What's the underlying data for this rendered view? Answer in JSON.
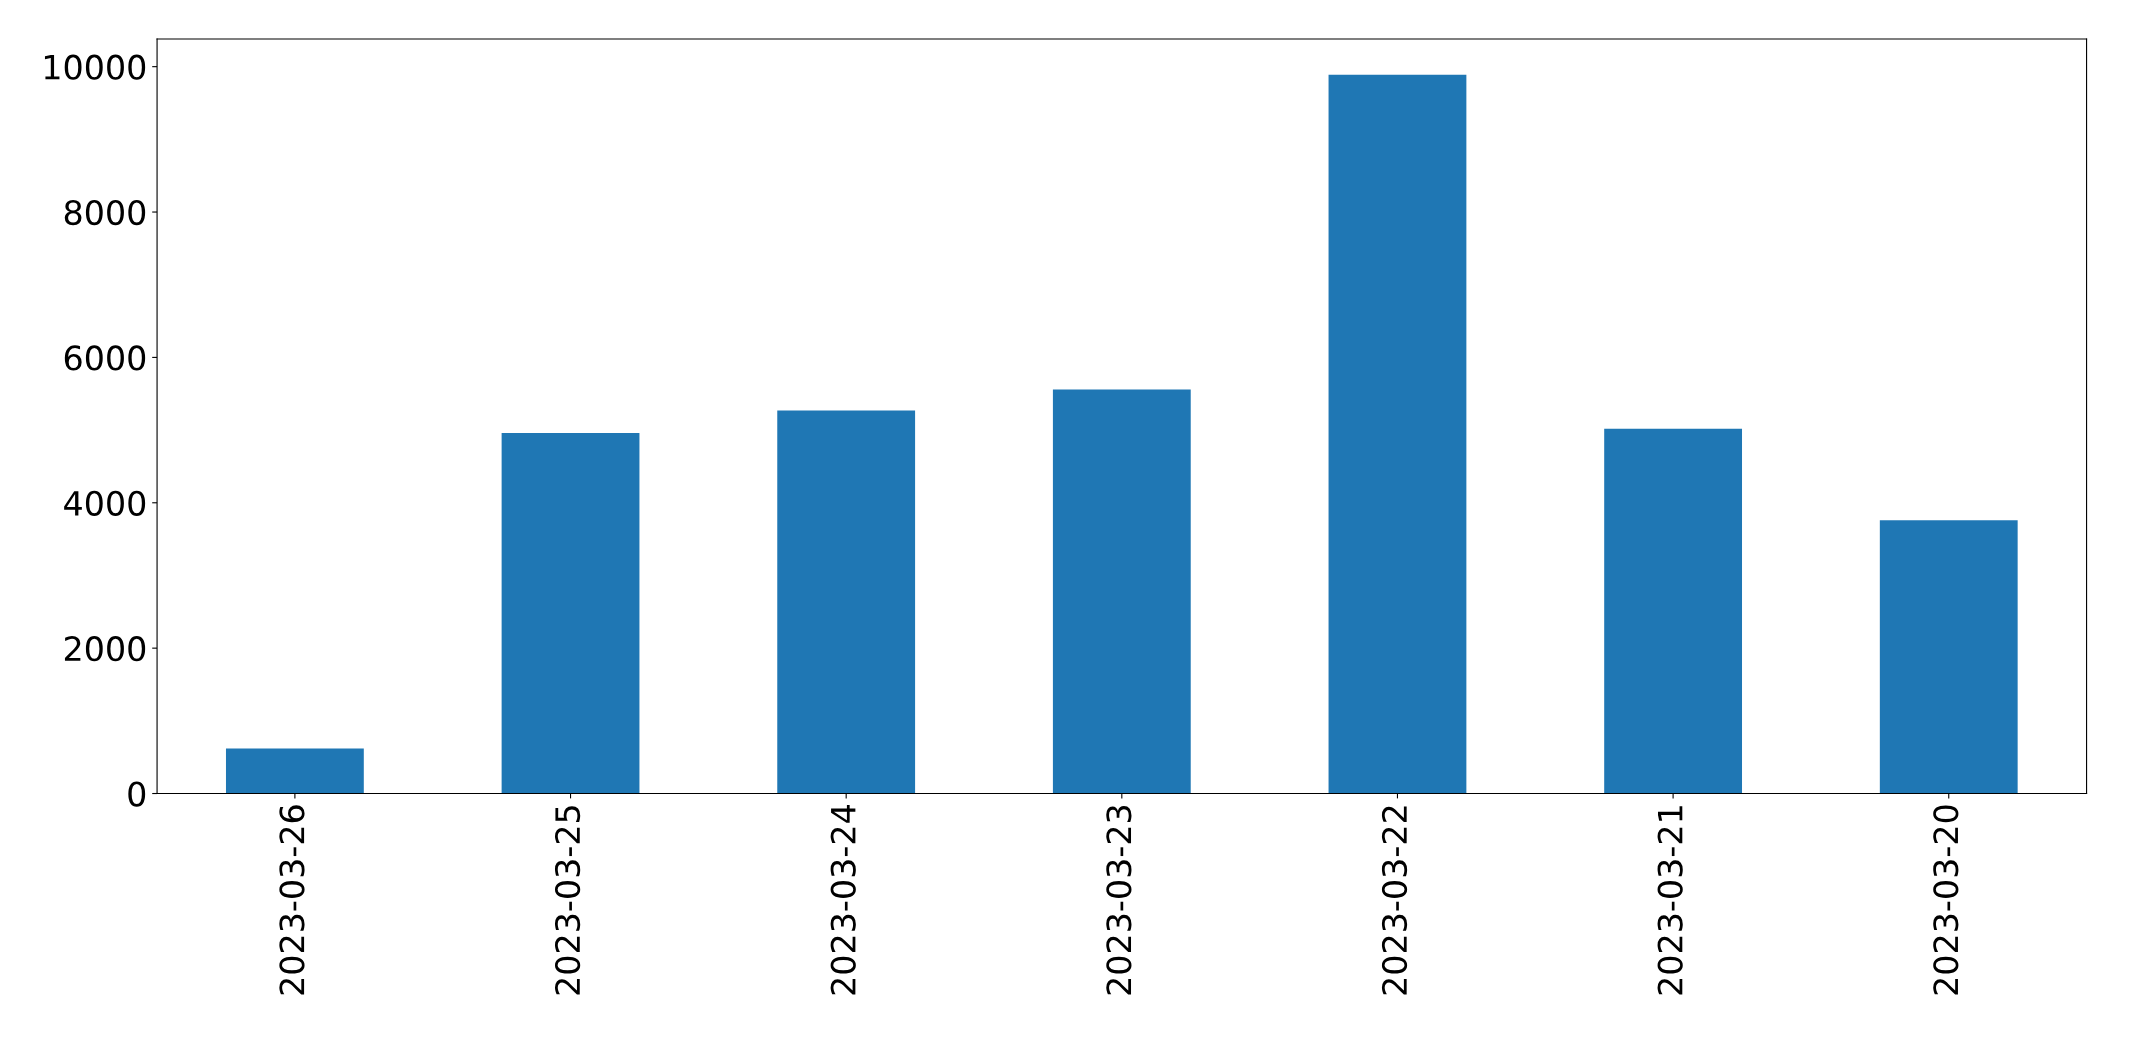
{
  "chart_data": {
    "type": "bar",
    "categories": [
      "2023-03-26",
      "2023-03-25",
      "2023-03-24",
      "2023-03-23",
      "2023-03-22",
      "2023-03-21",
      "2023-03-20"
    ],
    "values": [
      620,
      4960,
      5270,
      5560,
      9890,
      5020,
      3760
    ],
    "color": "#1f77b4",
    "ylim": [
      0,
      10380
    ],
    "yticks": [
      0,
      2000,
      4000,
      6000,
      8000,
      10000
    ],
    "grid": false,
    "legend": false
  }
}
